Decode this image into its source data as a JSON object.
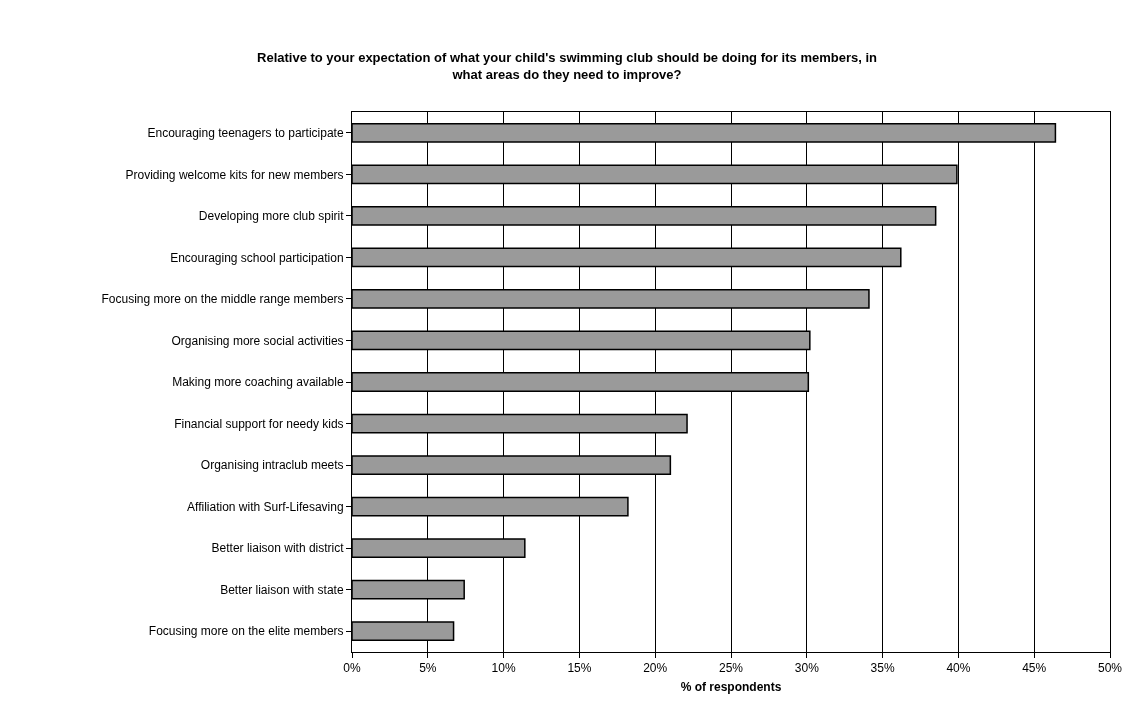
{
  "chart_data": {
    "type": "bar",
    "orientation": "horizontal",
    "title": "Relative to your expectation of what your child's swimming club should be doing for its members, in\nwhat areas do they need to improve?",
    "xlabel": "% of respondents",
    "categories": [
      "Encouraging teenagers to participate",
      "Providing welcome kits for new members",
      "Developing more club spirit",
      "Encouraging school participation",
      "Focusing more on the middle range members",
      "Organising more social activities",
      "Making more coaching available",
      "Financial support for needy kids",
      "Organising intraclub meets",
      "Affiliation with Surf-Lifesaving",
      "Better liaison with district",
      "Better liaison with state",
      "Focusing more on the elite members"
    ],
    "values": [
      46.4,
      39.9,
      38.5,
      36.2,
      34.1,
      30.2,
      30.1,
      22.1,
      21.0,
      18.2,
      11.4,
      7.4,
      6.7
    ],
    "color": "#9a9a9a",
    "xlim": [
      0,
      50
    ],
    "xticks": [
      {
        "value": 0,
        "label": "0%"
      },
      {
        "value": 5,
        "label": "5%"
      },
      {
        "value": 10,
        "label": "10%"
      },
      {
        "value": 15,
        "label": "15%"
      },
      {
        "value": 20,
        "label": "20%"
      },
      {
        "value": 25,
        "label": "25%"
      },
      {
        "value": 30,
        "label": "30%"
      },
      {
        "value": 35,
        "label": "35%"
      },
      {
        "value": 40,
        "label": "40%"
      },
      {
        "value": 45,
        "label": "45%"
      },
      {
        "value": 50,
        "label": "50%"
      }
    ],
    "grid": "x",
    "legend": false
  }
}
